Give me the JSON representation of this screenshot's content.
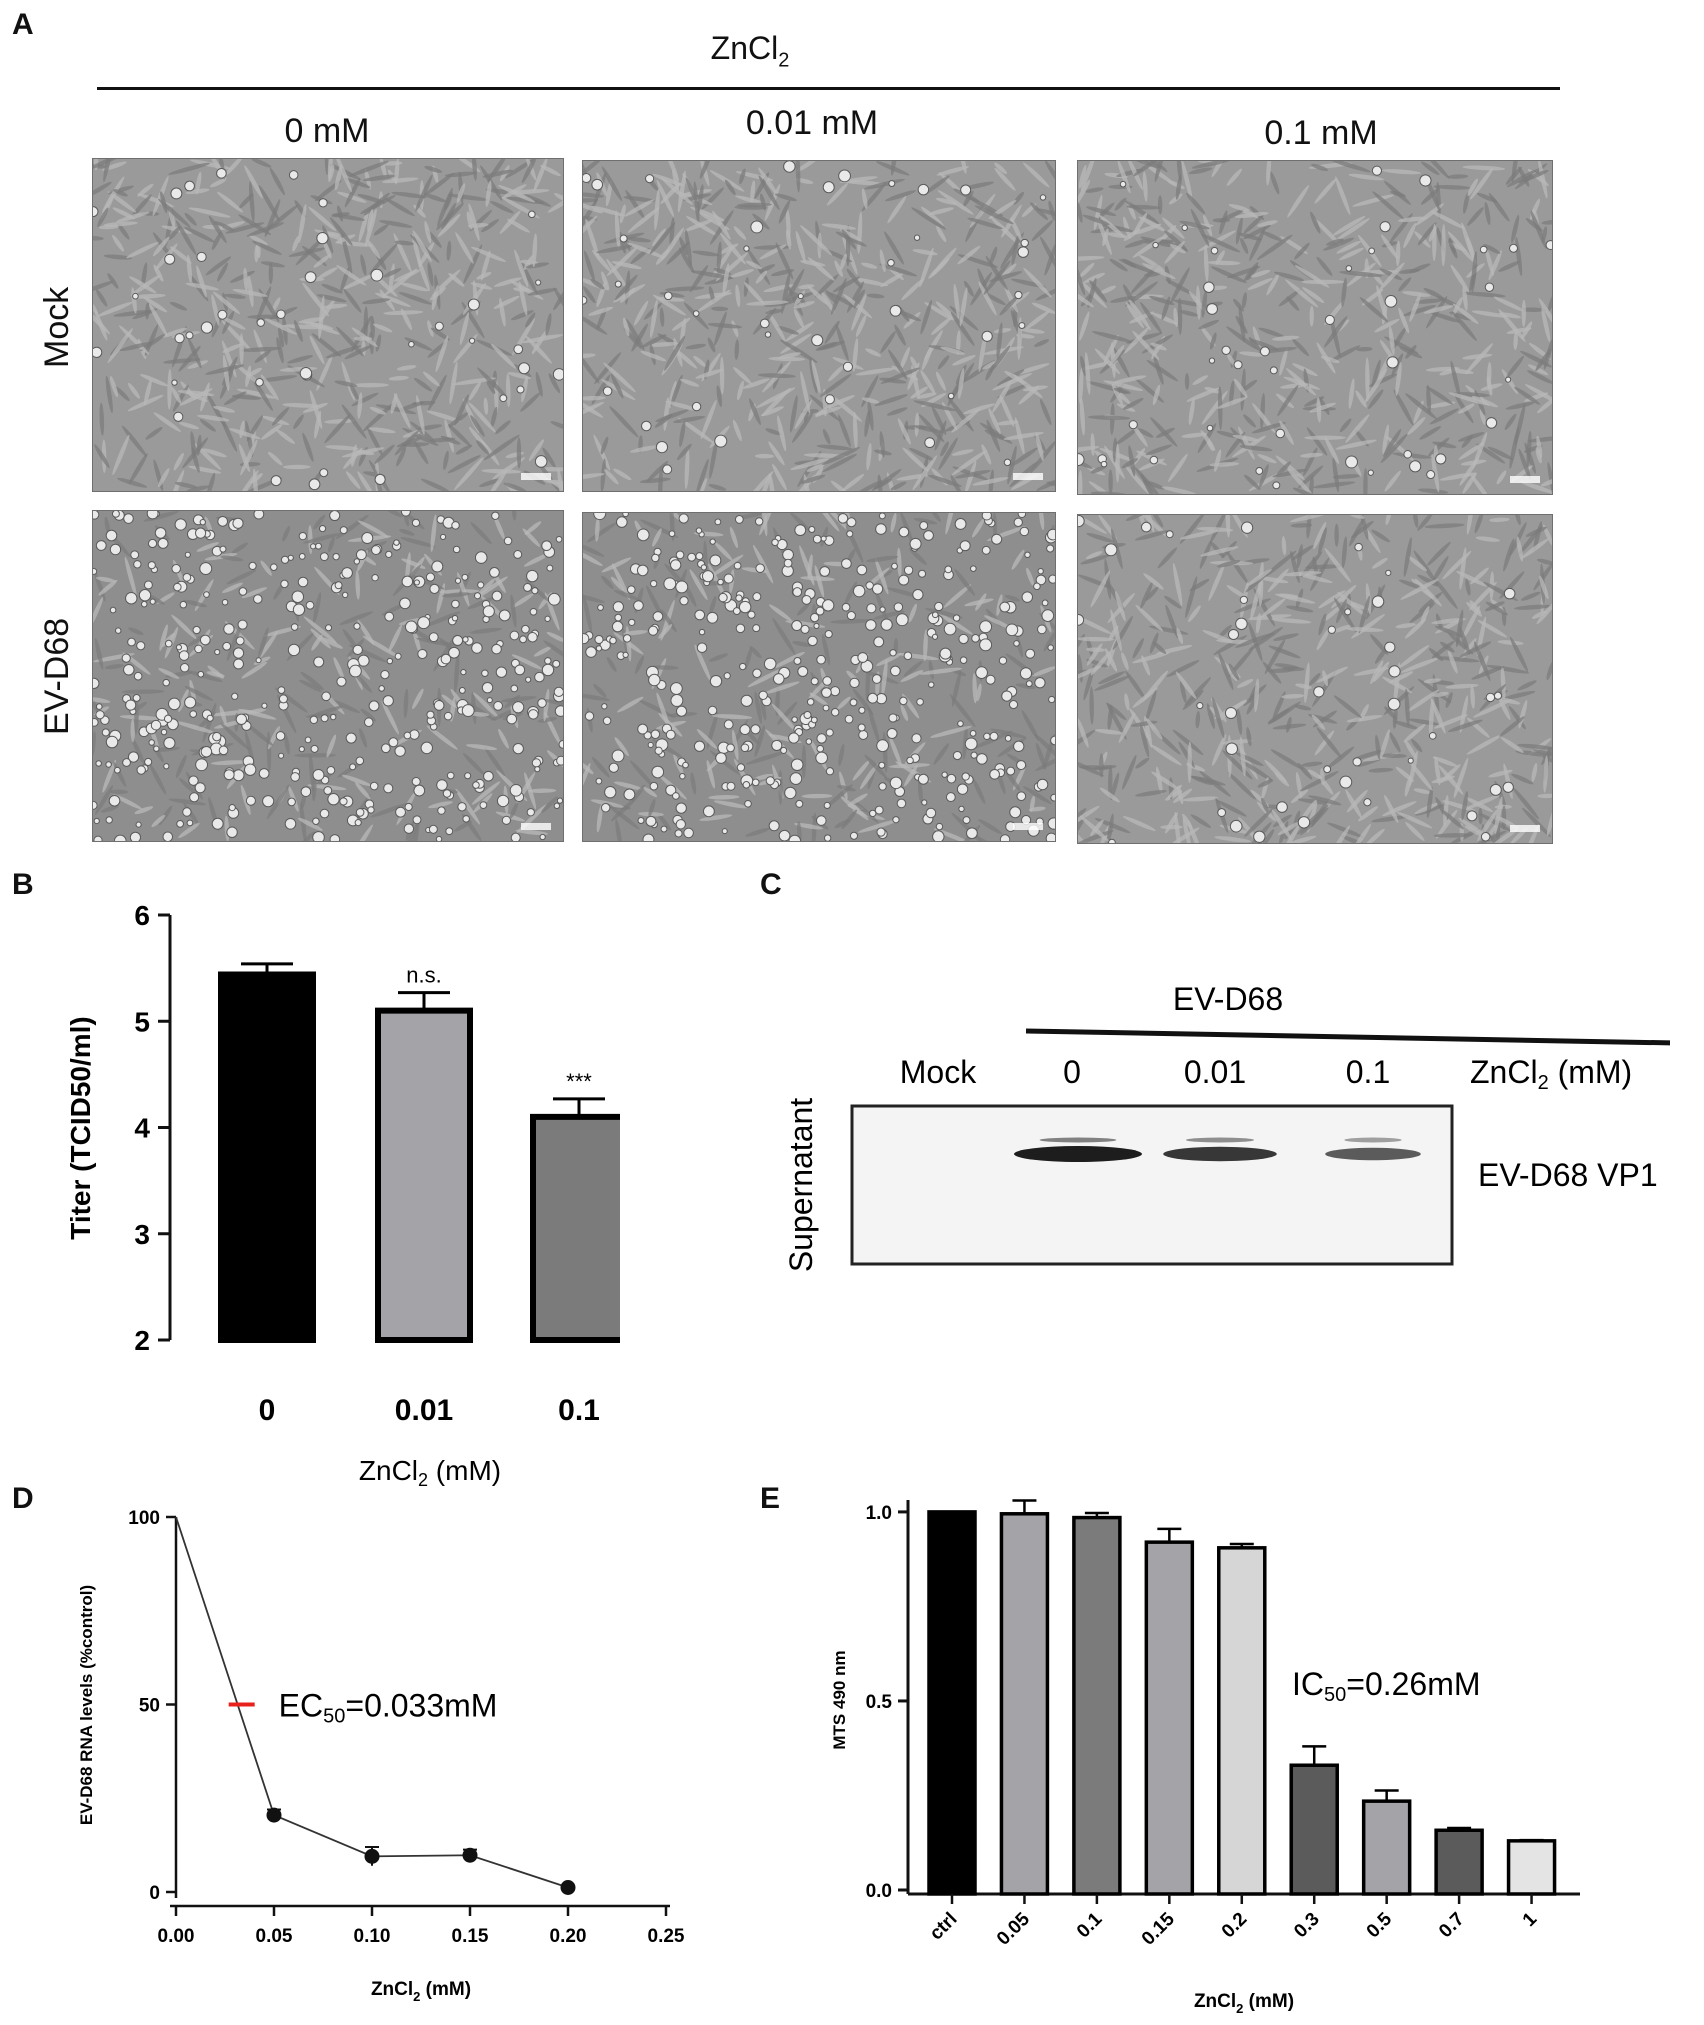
{
  "panel_a": {
    "letter": "A",
    "treatment_base": "ZnCl",
    "treatment_sub": "2",
    "columns": [
      "0 mM",
      "0.01 mM",
      "0.1 mM"
    ],
    "rows": [
      "Mock",
      "EV-D68"
    ]
  },
  "panel_c": {
    "letter": "C",
    "group_label": "EV-D68",
    "lanes": [
      "Mock",
      "0",
      "0.01",
      "0.1"
    ],
    "zncl_label_base": "ZnCl",
    "zncl_label_sub": "2",
    "zncl_label_unit": " (mM)",
    "row_label": "Supernatant",
    "band_label": "EV-D68 VP1",
    "band_intensity": [
      0.0,
      1.0,
      0.8,
      0.55
    ]
  },
  "chart_data": [
    {
      "panel": "B",
      "type": "bar",
      "categories": [
        "0",
        "0.01",
        "0.1"
      ],
      "values": [
        5.44,
        5.1,
        4.1
      ],
      "errors": [
        0.1,
        0.17,
        0.17
      ],
      "bar_colors": [
        "#000000",
        "#a3a3a8",
        "#7b7b7b"
      ],
      "annotations": [
        "",
        "n.s.",
        "***"
      ],
      "ylabel": "Titer (TCID50/ml)",
      "xlabel_base": "ZnCl",
      "xlabel_sub": "2",
      "xlabel_unit": " (mM)",
      "ylim": [
        2,
        6
      ],
      "yticks": [
        "2",
        "3",
        "4",
        "5",
        "6"
      ]
    },
    {
      "panel": "D",
      "type": "line",
      "x": [
        0.0,
        0.05,
        0.1,
        0.15,
        0.2
      ],
      "y": [
        100,
        20.5,
        9.5,
        9.8,
        1.2
      ],
      "errors": [
        0,
        1.5,
        2.5,
        1.5,
        0.5
      ],
      "ylabel": "EV-D68 RNA levels (%control)",
      "xlabel_base": "ZnCl",
      "xlabel_sub": "2",
      "xlabel_unit": " (mM)",
      "xlim": [
        0,
        0.25
      ],
      "ylim": [
        0,
        100
      ],
      "xticks": [
        "0.00",
        "0.05",
        "0.10",
        "0.15",
        "0.20",
        "0.25"
      ],
      "yticks": [
        "0",
        "50",
        "100"
      ],
      "annotation": {
        "base": "EC",
        "sub": "50",
        "rest": "=0.033mM",
        "x": 0.033,
        "y": 50,
        "color": "#e8211c"
      }
    },
    {
      "panel": "E",
      "type": "bar",
      "categories": [
        "ctrl",
        "0.05",
        "0.1",
        "0.15",
        "0.2",
        "0.3",
        "0.5",
        "0.7",
        "1"
      ],
      "values": [
        1.0,
        0.995,
        0.985,
        0.92,
        0.905,
        0.33,
        0.235,
        0.158,
        0.13
      ],
      "errors": [
        0,
        0.035,
        0.012,
        0.035,
        0.01,
        0.05,
        0.028,
        0.006,
        0.002
      ],
      "bar_colors": [
        "#000000",
        "#a3a3a8",
        "#7b7b7b",
        "#a3a3a8",
        "#d6d6d6",
        "#5b5b5b",
        "#a3a3a8",
        "#5b5b5b",
        "#e4e4e4"
      ],
      "ylabel": "MTS 490 nm",
      "xlabel_base": "ZnCl",
      "xlabel_sub": "2",
      "xlabel_unit": " (mM)",
      "ylim": [
        0,
        1.05
      ],
      "yticks": [
        "0.0",
        "0.5",
        "1.0"
      ],
      "annotation": {
        "base": "IC",
        "sub": "50",
        "rest": "=0.26mM"
      }
    }
  ]
}
